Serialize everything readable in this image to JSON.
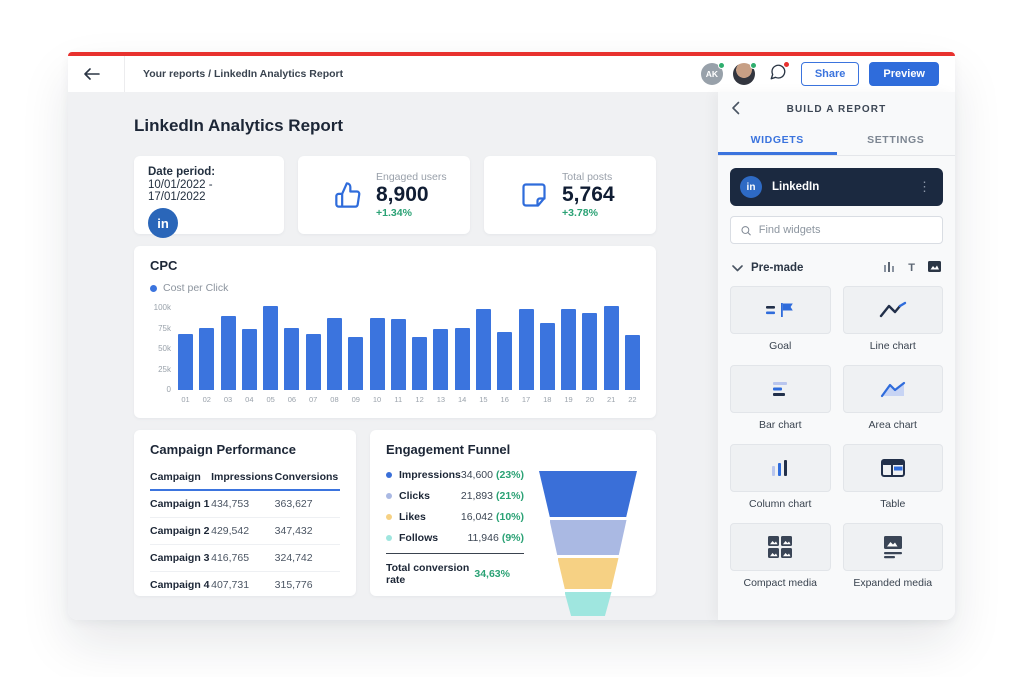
{
  "topbar": {
    "breadcrumb": "Your reports / LinkedIn Analytics Report",
    "avatar_initials": "AK",
    "share_label": "Share",
    "preview_label": "Preview"
  },
  "report": {
    "title": "LinkedIn Analytics Report",
    "date_card": {
      "label": "Date period:",
      "range": "10/01/2022 - 17/01/2022",
      "network_badge": "in"
    },
    "kpi_cards": [
      {
        "icon": "thumbs-up",
        "label": "Engaged users",
        "value": "8,900",
        "delta": "+1.34%"
      },
      {
        "icon": "post-note",
        "label": "Total posts",
        "value": "5,764",
        "delta": "+3.78%"
      }
    ]
  },
  "chart_data": [
    {
      "name": "cpc",
      "type": "bar",
      "title": "CPC",
      "legend": [
        "Cost per Click"
      ],
      "legend_position": "top-left",
      "grid": false,
      "categories": [
        "01",
        "02",
        "03",
        "04",
        "05",
        "06",
        "07",
        "08",
        "09",
        "10",
        "11",
        "12",
        "13",
        "14",
        "15",
        "16",
        "17",
        "18",
        "19",
        "20",
        "21",
        "22"
      ],
      "values": [
        65,
        72,
        86,
        71,
        98,
        72,
        65,
        84,
        62,
        84,
        83,
        62,
        71,
        72,
        94,
        67,
        94,
        78,
        94,
        90,
        98,
        64
      ],
      "unit": "k",
      "ylim": [
        0,
        100
      ],
      "yticks": [
        "100k",
        "75k",
        "50k",
        "25k",
        "0"
      ],
      "bar_color": "#3b74de"
    },
    {
      "name": "campaign-performance",
      "type": "table",
      "title": "Campaign Performance",
      "columns": [
        "Campaign",
        "Impressions",
        "Conversions"
      ],
      "rows": [
        [
          "Campaign 1",
          "434,753",
          "363,627"
        ],
        [
          "Campaign 2",
          "429,542",
          "347,432"
        ],
        [
          "Campaign 3",
          "416,765",
          "324,742"
        ],
        [
          "Campaign 4",
          "407,731",
          "315,776"
        ]
      ]
    },
    {
      "name": "engagement-funnel",
      "type": "funnel",
      "title": "Engagement Funnel",
      "rows": [
        {
          "label": "Impressions",
          "value": "34,600",
          "percent": "(23%)",
          "color": "#3a6fd8"
        },
        {
          "label": "Clicks",
          "value": "21,893",
          "percent": "(21%)",
          "color": "#aab9e3"
        },
        {
          "label": "Likes",
          "value": "16,042",
          "percent": "(10%)",
          "color": "#f6d184"
        },
        {
          "label": "Follows",
          "value": "11,946",
          "percent": "(9%)",
          "color": "#9fe6df"
        }
      ],
      "total_label": "Total conversion rate",
      "total_value": "34,63%"
    }
  ],
  "sidebar": {
    "title": "BUILD A REPORT",
    "tabs": [
      {
        "label": "WIDGETS",
        "active": true
      },
      {
        "label": "SETTINGS",
        "active": false
      }
    ],
    "source_name": "LinkedIn",
    "source_badge": "in",
    "search_placeholder": "Find widgets",
    "section_label": "Pre-made",
    "view_toggle_text_glyph": "T",
    "widgets": [
      {
        "label": "Goal"
      },
      {
        "label": "Line chart"
      },
      {
        "label": "Bar chart"
      },
      {
        "label": "Area chart"
      },
      {
        "label": "Column chart"
      },
      {
        "label": "Table"
      },
      {
        "label": "Compact media"
      },
      {
        "label": "Expanded media"
      }
    ]
  },
  "colors": {
    "accent_blue": "#3b74de",
    "dark_navy": "#1b2940",
    "positive_green": "#2ba275",
    "top_line_red": "#e8312e",
    "canvas_gray": "#f0f1f3",
    "funnel_segments": [
      "#3a6fd8",
      "#aab9e3",
      "#f6d184",
      "#9fe6df"
    ]
  }
}
